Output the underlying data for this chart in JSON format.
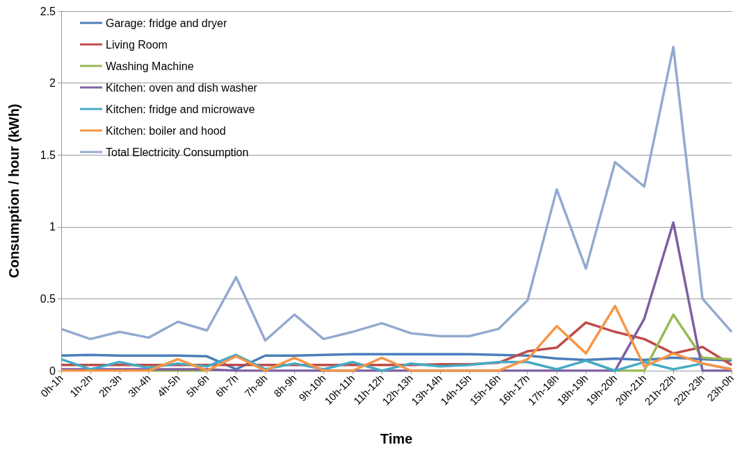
{
  "chart_data": {
    "type": "line",
    "xlabel": "Time",
    "ylabel": "Consumption / hour (kWh)",
    "categories": [
      "0h-1h",
      "1h-2h",
      "2h-3h",
      "3h-4h",
      "4h-5h",
      "5h-6h",
      "6h-7h",
      "7h-8h",
      "8h-9h",
      "9h-10h",
      "10h-11h",
      "11h-12h",
      "12h-13h",
      "13h-14h",
      "14h-15h",
      "15h-16h",
      "16h-17h",
      "17h-18h",
      "18h-19h",
      "19h-20h",
      "20h-21h",
      "21h-22h",
      "22h-23h",
      "23h-0h"
    ],
    "series": [
      {
        "name": "Garage: fridge and dryer",
        "color": "#4a7ebb",
        "values": [
          0.105,
          0.11,
          0.105,
          0.105,
          0.105,
          0.1,
          0.01,
          0.105,
          0.105,
          0.11,
          0.115,
          0.115,
          0.115,
          0.115,
          0.115,
          0.11,
          0.105,
          0.085,
          0.075,
          0.085,
          0.075,
          0.09,
          0.08,
          0.07
        ]
      },
      {
        "name": "Living Room",
        "color": "#be4b48",
        "values": [
          0.04,
          0.04,
          0.04,
          0.04,
          0.04,
          0.04,
          0.04,
          0.04,
          0.04,
          0.04,
          0.04,
          0.04,
          0.04,
          0.045,
          0.045,
          0.055,
          0.135,
          0.16,
          0.335,
          0.27,
          0.22,
          0.12,
          0.165,
          0.04
        ]
      },
      {
        "name": "Washing Machine",
        "color": "#98b954",
        "values": [
          null,
          null,
          null,
          0,
          0,
          0,
          null,
          null,
          null,
          null,
          null,
          null,
          null,
          null,
          null,
          null,
          null,
          null,
          null,
          0,
          0,
          0.39,
          0.09,
          0.08
        ]
      },
      {
        "name": "Kitchen: oven and dish washer",
        "color": "#7d60a0",
        "values": [
          0.01,
          0.01,
          0.01,
          0.01,
          0.01,
          0.01,
          0,
          0,
          0,
          0,
          0,
          0,
          0,
          0,
          0,
          0,
          0,
          0,
          0,
          0,
          0.36,
          1.03,
          0,
          0
        ]
      },
      {
        "name": "Kitchen: fridge and microwave",
        "color": "#46aac5",
        "values": [
          0.08,
          0.01,
          0.06,
          0.02,
          0.05,
          0.03,
          0.11,
          0.01,
          0.05,
          0.01,
          0.06,
          0,
          0.05,
          0.03,
          0.04,
          0.06,
          0.06,
          0.01,
          0.07,
          0,
          0.06,
          0.01,
          0.05,
          0.01
        ]
      },
      {
        "name": "Kitchen: boiler and hood",
        "color": "#f79646",
        "values": [
          0,
          0,
          0,
          0,
          0.08,
          0,
          0.1,
          0,
          0.09,
          0,
          0,
          0.09,
          0,
          0,
          0,
          0,
          0.08,
          0.31,
          0.12,
          0.45,
          0.03,
          0.12,
          0.05,
          0.01
        ]
      },
      {
        "name": "Total Electricity Consumption",
        "color": "#93a9cf",
        "values": [
          0.29,
          0.22,
          0.27,
          0.23,
          0.34,
          0.28,
          0.65,
          0.21,
          0.39,
          0.22,
          0.27,
          0.33,
          0.26,
          0.24,
          0.24,
          0.29,
          0.49,
          1.26,
          0.71,
          1.45,
          1.28,
          2.25,
          0.5,
          0.27
        ]
      }
    ],
    "ylim": [
      0,
      2.5
    ],
    "yticks": [
      0,
      0.5,
      1,
      1.5,
      2,
      2.5
    ],
    "grid": "y",
    "legend": "top left",
    "marker": "none",
    "line_style": "solid"
  }
}
